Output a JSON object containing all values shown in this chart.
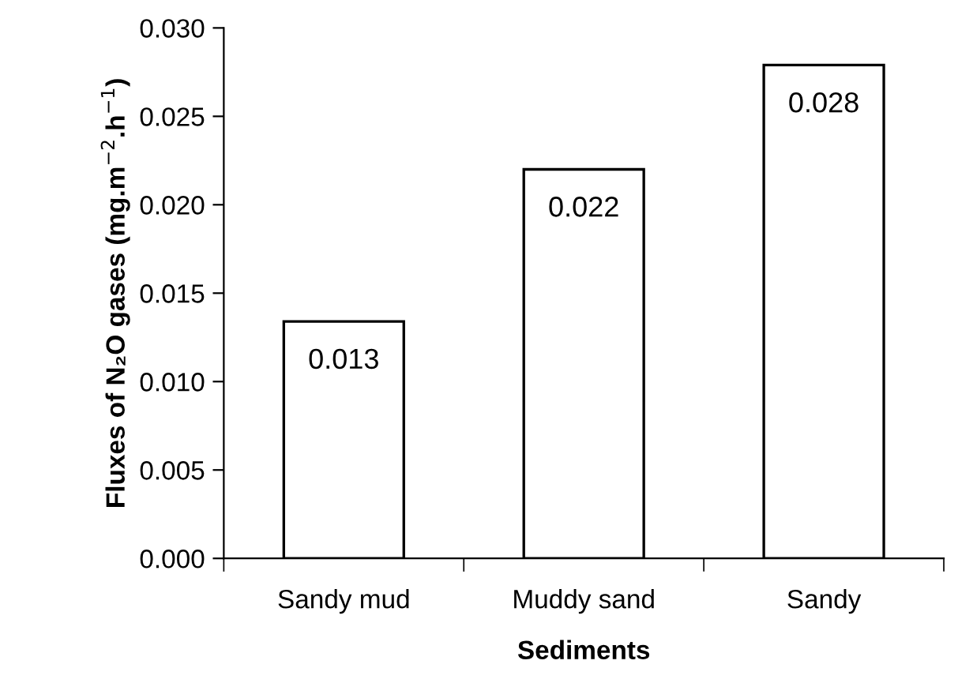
{
  "chart_data": {
    "type": "bar",
    "xlabel": "Sediments",
    "ylabel": "Fluxes of N₂O gases (mg.m$^{−2}$.h$^{−1}$)",
    "categories": [
      "Sandy mud",
      "Muddy sand",
      "Sandy"
    ],
    "values": [
      0.0134,
      0.022,
      0.0279
    ],
    "value_labels": [
      "0.013",
      "0.022",
      "0.028"
    ],
    "color": "#ffffff",
    "ylim": [
      0,
      0.03
    ],
    "yticks": [
      {
        "value": 0,
        "label": "0.000"
      },
      {
        "value": 0.005,
        "label": "0.005"
      },
      {
        "value": 0.01,
        "label": "0.010"
      },
      {
        "value": 0.015,
        "label": "0.015"
      },
      {
        "value": 0.02,
        "label": "0.020"
      },
      {
        "value": 0.025,
        "label": "0.025"
      },
      {
        "value": 0.03,
        "label": "0.030"
      }
    ],
    "grid": false
  }
}
